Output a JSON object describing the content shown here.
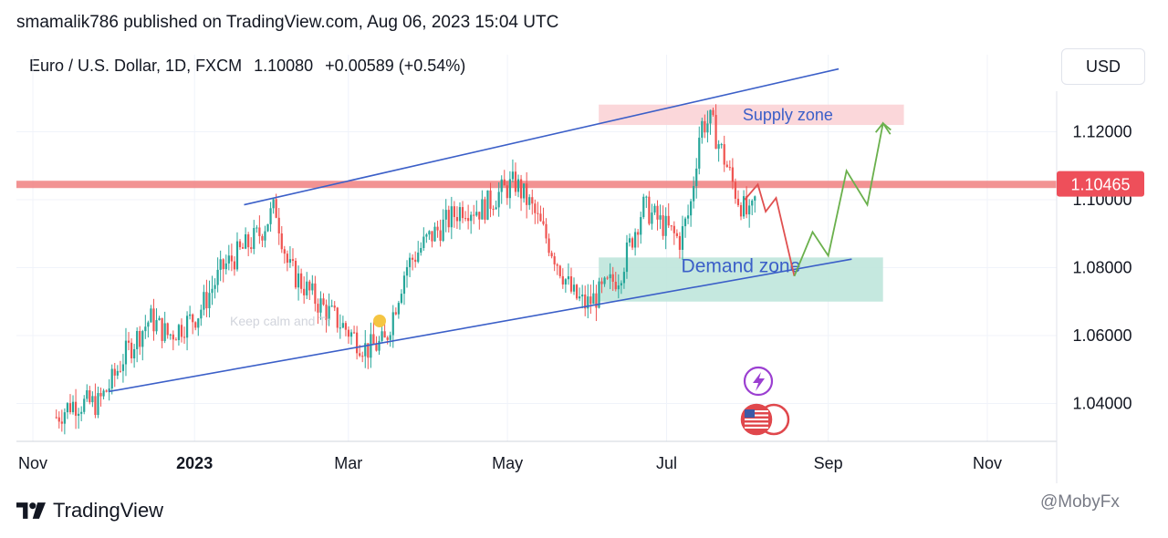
{
  "header": {
    "published": "smamalik786 published on TradingView.com, Aug 06, 2023 15:04 UTC"
  },
  "legend": {
    "symbol": "Euro / U.S. Dollar, 1D, FXCM",
    "last": "1.10080",
    "change": "+0.00589 (+0.54%)"
  },
  "currency_button": "USD",
  "footer": {
    "brand": "TradingView",
    "credit": "@MobyFx"
  },
  "watermark": "Keep calm and Tr",
  "chart_data": {
    "type": "candlestick",
    "x_axis_labels": [
      "Nov",
      "2023",
      "Mar",
      "May",
      "Jul",
      "Sep",
      "Nov"
    ],
    "y_axis_labels": [
      "1.12000",
      "1.10000",
      "1.08000",
      "1.06000",
      "1.04000"
    ],
    "y_ticks": [
      1.12,
      1.1,
      1.08,
      1.06,
      1.04
    ],
    "ylim": [
      1.03,
      1.14
    ],
    "current_price": 1.10465,
    "current_price_label": "1.10465",
    "colors": {
      "up": "#26a69a",
      "down": "#ef5350",
      "channel": "#3b5fc8",
      "level": "#f08080",
      "supply": "#fbd3d6",
      "demand": "#bfe6dc",
      "zone_text": "#3b5fc8",
      "path_down": "#e05050",
      "path_up": "#6ab04c"
    },
    "zones": [
      {
        "label": "Supply zone",
        "from": "2023-06-05",
        "to": "2023-09-30",
        "low": 1.122,
        "high": 1.128
      },
      {
        "label": "Demand zone",
        "from": "2023-06-05",
        "to": "2023-09-22",
        "low": 1.07,
        "high": 1.083
      }
    ],
    "horizontal_level": 1.1045,
    "channel_lines": [
      {
        "from": [
          "2022-11-29",
          1.0435
        ],
        "to": [
          "2023-09-10",
          1.0825
        ]
      },
      {
        "from": [
          "2023-01-20",
          1.0985
        ],
        "to": [
          "2023-09-05",
          1.1385
        ]
      }
    ],
    "projection_down": [
      [
        "2023-07-31",
        1.1
      ],
      [
        "2023-08-05",
        1.1045
      ],
      [
        "2023-08-08",
        1.0965
      ],
      [
        "2023-08-12",
        1.1005
      ],
      [
        "2023-08-19",
        1.0775
      ]
    ],
    "projection_up": [
      [
        "2023-08-19",
        1.0775
      ],
      [
        "2023-08-26",
        1.0905
      ],
      [
        "2023-09-01",
        1.0835
      ],
      [
        "2023-09-08",
        1.1085
      ],
      [
        "2023-09-16",
        1.0985
      ],
      [
        "2023-09-22",
        1.1225
      ],
      [
        "2023-09-25",
        1.1205
      ]
    ],
    "price_path": [
      [
        "2022-11-09",
        1.036
      ],
      [
        "2022-11-15",
        1.04
      ],
      [
        "2022-11-25",
        1.04
      ],
      [
        "2022-11-30",
        1.046
      ],
      [
        "2022-12-05",
        1.054
      ],
      [
        "2022-12-15",
        1.065
      ],
      [
        "2022-12-22",
        1.06
      ],
      [
        "2023-01-02",
        1.066
      ],
      [
        "2023-01-12",
        1.08
      ],
      [
        "2023-01-26",
        1.09
      ],
      [
        "2023-02-01",
        1.098
      ],
      [
        "2023-02-06",
        1.08
      ],
      [
        "2023-02-17",
        1.07
      ],
      [
        "2023-02-28",
        1.062
      ],
      [
        "2023-03-08",
        1.056
      ],
      [
        "2023-03-15",
        1.058
      ],
      [
        "2023-03-23",
        1.08
      ],
      [
        "2023-03-31",
        1.088
      ],
      [
        "2023-04-14",
        1.098
      ],
      [
        "2023-04-21",
        1.097
      ],
      [
        "2023-04-28",
        1.102
      ],
      [
        "2023-05-04",
        1.105
      ],
      [
        "2023-05-10",
        1.098
      ],
      [
        "2023-05-17",
        1.087
      ],
      [
        "2023-05-26",
        1.072
      ],
      [
        "2023-05-31",
        1.069
      ],
      [
        "2023-06-05",
        1.072
      ],
      [
        "2023-06-13",
        1.078
      ],
      [
        "2023-06-22",
        1.098
      ],
      [
        "2023-07-06",
        1.088
      ],
      [
        "2023-07-10",
        1.097
      ],
      [
        "2023-07-14",
        1.122
      ],
      [
        "2023-07-18",
        1.123
      ],
      [
        "2023-07-25",
        1.108
      ],
      [
        "2023-07-28",
        1.101
      ],
      [
        "2023-08-02",
        1.094
      ],
      [
        "2023-08-04",
        1.1
      ]
    ],
    "icons": [
      "lightning-icon",
      "us-flag-icon"
    ]
  }
}
